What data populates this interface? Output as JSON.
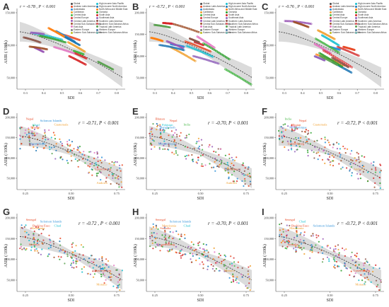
{
  "chart_data": [
    {
      "panel": "A",
      "type": "scatter",
      "stat": "r = -0.78 ,  P < 0.001",
      "ylabel": "ASIR (/100k)",
      "xlabel": "SDI",
      "yticks": [
        "50,000",
        "100,000",
        "150,000"
      ],
      "xticks": [
        "0.3",
        "0.4",
        "0.5",
        "0.6",
        "0.7",
        "0.8"
      ],
      "legend": [
        {
          "name": "Global",
          "color": "#444444"
        },
        {
          "name": "Andean Latin America",
          "color": "#e84a27"
        },
        {
          "name": "Australasia",
          "color": "#2c8fd8"
        },
        {
          "name": "Caribbean",
          "color": "#f0a030"
        },
        {
          "name": "Central Asia",
          "color": "#48b848"
        },
        {
          "name": "Central Europe",
          "color": "#d63b3b"
        },
        {
          "name": "Central Latin America",
          "color": "#9b59b6"
        },
        {
          "name": "Central Sub-Saharan Africa",
          "color": "#a0522d"
        },
        {
          "name": "East Asia",
          "color": "#e377c2"
        },
        {
          "name": "Eastern Europe",
          "color": "#7f7f7f"
        },
        {
          "name": "Eastern Sub-Saharan Africa",
          "color": "#bcbd22"
        },
        {
          "name": "High-income Asia Pacific",
          "color": "#17becf"
        },
        {
          "name": "High-income North America",
          "color": "#1f77b4"
        },
        {
          "name": "North Africa and Middle East",
          "color": "#ff7f0e"
        },
        {
          "name": "Oceania",
          "color": "#2ca02c"
        },
        {
          "name": "South Asia",
          "color": "#d62728"
        },
        {
          "name": "Southeast Asia",
          "color": "#9467bd"
        },
        {
          "name": "Southern Latin America",
          "color": "#8c564b"
        },
        {
          "name": "Southern Sub-Saharan Africa",
          "color": "#e15759"
        },
        {
          "name": "Tropical Latin America",
          "color": "#59a14f"
        },
        {
          "name": "Western Europe",
          "color": "#4e79a7"
        },
        {
          "name": "Western Sub-Saharan Africa",
          "color": "#76b7b2"
        }
      ]
    },
    {
      "panel": "B",
      "type": "scatter",
      "stat": "r = -0.72 ,  P < 0.001",
      "ylabel": "ASIR (/100k)",
      "xlabel": "SDI",
      "yticks": [
        "50,000",
        "100,000",
        "150,000",
        "200,000"
      ],
      "xticks": [
        "0.3",
        "0.4",
        "0.5",
        "0.6",
        "0.7",
        "0.8"
      ],
      "legend": [
        {
          "name": "Global",
          "color": "#444444"
        },
        {
          "name": "Andean Latin America",
          "color": "#e84a27"
        },
        {
          "name": "Australasia",
          "color": "#2c8fd8"
        },
        {
          "name": "Caribbean",
          "color": "#f0a030"
        },
        {
          "name": "Central Asia",
          "color": "#48b848"
        },
        {
          "name": "Central Europe",
          "color": "#d63b3b"
        },
        {
          "name": "Central Latin America",
          "color": "#9b59b6"
        },
        {
          "name": "Central Sub-Saharan Africa",
          "color": "#a0522d"
        },
        {
          "name": "East Asia",
          "color": "#e377c2"
        },
        {
          "name": "Eastern Europe",
          "color": "#7f7f7f"
        },
        {
          "name": "Eastern Sub-Saharan Africa",
          "color": "#bcbd22"
        },
        {
          "name": "High-income Asia Pacific",
          "color": "#17becf"
        },
        {
          "name": "High-income North America",
          "color": "#1f77b4"
        },
        {
          "name": "North Africa and Middle East",
          "color": "#ff7f0e"
        },
        {
          "name": "Oceania",
          "color": "#2ca02c"
        },
        {
          "name": "South Asia",
          "color": "#d62728"
        },
        {
          "name": "Southeast Asia",
          "color": "#9467bd"
        },
        {
          "name": "Southern Latin America",
          "color": "#8c564b"
        },
        {
          "name": "Southern Sub-Saharan Africa",
          "color": "#e15759"
        },
        {
          "name": "Tropical Latin America",
          "color": "#59a14f"
        },
        {
          "name": "Western Europe",
          "color": "#4e79a7"
        },
        {
          "name": "Western Sub-Saharan Africa",
          "color": "#76b7b2"
        }
      ]
    },
    {
      "panel": "C",
      "type": "scatter",
      "stat": "r = -0.76 ,  P < 0.001",
      "ylabel": "ASIR (/100k)",
      "xlabel": "SDI",
      "yticks": [
        "50,000",
        "100,000",
        "150,000"
      ],
      "xticks": [
        "0.3",
        "0.4",
        "0.5",
        "0.6",
        "0.7",
        "0.8"
      ],
      "legend": [
        {
          "name": "Global",
          "color": "#444444"
        },
        {
          "name": "Andean Latin America",
          "color": "#e84a27"
        },
        {
          "name": "Australasia",
          "color": "#2c8fd8"
        },
        {
          "name": "Caribbean",
          "color": "#f0a030"
        },
        {
          "name": "Central Asia",
          "color": "#48b848"
        },
        {
          "name": "Central Europe",
          "color": "#d63b3b"
        },
        {
          "name": "Central Latin America",
          "color": "#9b59b6"
        },
        {
          "name": "Central Sub-Saharan Africa",
          "color": "#a0522d"
        },
        {
          "name": "East Asia",
          "color": "#e377c2"
        },
        {
          "name": "Eastern Europe",
          "color": "#7f7f7f"
        },
        {
          "name": "Eastern Sub-Saharan Africa",
          "color": "#bcbd22"
        },
        {
          "name": "High-income Asia Pacific",
          "color": "#17becf"
        },
        {
          "name": "High-income North America",
          "color": "#1f77b4"
        },
        {
          "name": "North Africa and Middle East",
          "color": "#ff7f0e"
        },
        {
          "name": "Oceania",
          "color": "#2ca02c"
        },
        {
          "name": "South Asia",
          "color": "#d62728"
        },
        {
          "name": "Southeast Asia",
          "color": "#9467bd"
        },
        {
          "name": "Southern Latin America",
          "color": "#8c564b"
        },
        {
          "name": "Southern Sub-Saharan Africa",
          "color": "#e15759"
        },
        {
          "name": "Tropical Latin America",
          "color": "#59a14f"
        },
        {
          "name": "Western Europe",
          "color": "#4e79a7"
        },
        {
          "name": "Western Sub-Saharan Africa",
          "color": "#76b7b2"
        }
      ]
    },
    {
      "panel": "D",
      "type": "scatter",
      "stat": "r = -0.71,  P < 0.001",
      "ylabel": "ASIR (/100k)",
      "xlabel": "SDI",
      "yticks": [
        "50,000",
        "100,000",
        "150,000",
        "200,000"
      ],
      "xticks": [
        "0.25",
        "0.50",
        "0.75"
      ],
      "annotations": [
        {
          "text": "Solomon Islands",
          "color": "#2c8fd8"
        },
        {
          "text": "Guatemala",
          "color": "#f0a030"
        },
        {
          "text": "Nepal",
          "color": "#e84a27"
        },
        {
          "text": "Chad",
          "color": "#17becf"
        },
        {
          "text": "Bhutan",
          "color": "#e84a27"
        },
        {
          "text": "Mozambique",
          "color": "#2c8fd8"
        },
        {
          "text": "Luxembourg",
          "color": "#e84a27"
        },
        {
          "text": "Andorra",
          "color": "#f0a030"
        }
      ]
    },
    {
      "panel": "E",
      "type": "scatter",
      "stat": "r = -0.70,  P < 0.001",
      "ylabel": "ASIR (/100k)",
      "xlabel": "SDI",
      "yticks": [
        "50,000",
        "100,000",
        "150,000",
        "200,000"
      ],
      "xticks": [
        "0.25",
        "0.50",
        "0.75"
      ],
      "annotations": [
        {
          "text": "Nepal",
          "color": "#e84a27"
        },
        {
          "text": "India",
          "color": "#48b848"
        },
        {
          "text": "Bhutan",
          "color": "#e84a27"
        },
        {
          "text": "Pakistan",
          "color": "#17becf"
        },
        {
          "text": "Bangladesh",
          "color": "#2c8fd8"
        },
        {
          "text": "Mozambique",
          "color": "#2c8fd8"
        },
        {
          "text": "Luxembourg",
          "color": "#e84a27"
        },
        {
          "text": "Andorra",
          "color": "#f0a030"
        }
      ]
    },
    {
      "panel": "F",
      "type": "scatter",
      "stat": "r = -0.72,  P < 0.001",
      "ylabel": "ASIR (/100k)",
      "xlabel": "SDI",
      "yticks": [
        "50,000",
        "100,000",
        "150,000",
        "200,000"
      ],
      "xticks": [
        "0.25",
        "0.50",
        "0.75"
      ],
      "annotations": [
        {
          "text": "Nepal",
          "color": "#e84a27"
        },
        {
          "text": "Guatemala",
          "color": "#f0a030"
        },
        {
          "text": "India",
          "color": "#48b848"
        },
        {
          "text": "Bhutan",
          "color": "#e84a27"
        },
        {
          "text": "Mozambique",
          "color": "#2c8fd8"
        },
        {
          "text": "Luxembourg",
          "color": "#e84a27"
        },
        {
          "text": "Andorra",
          "color": "#f0a030"
        }
      ]
    },
    {
      "panel": "G",
      "type": "scatter",
      "stat": "r = -0.72 ,  P < 0.001",
      "ylabel": "ASIR (/100k)",
      "xlabel": "SDI",
      "yticks": [
        "50,000",
        "100,000",
        "150,000",
        "200,000"
      ],
      "xticks": [
        "0.25",
        "0.50",
        "0.75"
      ],
      "annotations": [
        {
          "text": "Solomon Islands",
          "color": "#2c8fd8"
        },
        {
          "text": "Chad",
          "color": "#17becf"
        },
        {
          "text": "Senegal",
          "color": "#e84a27"
        },
        {
          "text": "Burkina Faso",
          "color": "#e84a27"
        },
        {
          "text": "Mauritania",
          "color": "#f0a030"
        },
        {
          "text": "Somalia",
          "color": "#e84a27"
        },
        {
          "text": "Luxembourg",
          "color": "#e84a27"
        },
        {
          "text": "Monaco",
          "color": "#f0a030"
        }
      ]
    },
    {
      "panel": "H",
      "type": "scatter",
      "stat": "r = -0.70,  P < 0.001",
      "ylabel": "ASIR (/100k)",
      "xlabel": "SDI",
      "yticks": [
        "50,000",
        "100,000",
        "150,000",
        "200,000"
      ],
      "xticks": [
        "0.25",
        "0.50",
        "0.75"
      ],
      "annotations": [
        {
          "text": "Solomon Islands",
          "color": "#2c8fd8"
        },
        {
          "text": "Chad",
          "color": "#17becf"
        },
        {
          "text": "Senegal",
          "color": "#e84a27"
        },
        {
          "text": "Mauritania",
          "color": "#f0a030"
        },
        {
          "text": "Somalia",
          "color": "#e84a27"
        },
        {
          "text": "Luxembourg",
          "color": "#e84a27"
        },
        {
          "text": "Monaco",
          "color": "#f0a030"
        }
      ]
    },
    {
      "panel": "I",
      "type": "scatter",
      "stat": "r = -0.72,  P < 0.001",
      "ylabel": "ASIR (/100k)",
      "xlabel": "SDI",
      "yticks": [
        "50,000",
        "100,000",
        "150,000",
        "200,000"
      ],
      "xticks": [
        "0.25",
        "0.50",
        "0.75"
      ],
      "annotations": [
        {
          "text": "Chad",
          "color": "#17becf"
        },
        {
          "text": "Solomon Islands",
          "color": "#2c8fd8"
        },
        {
          "text": "Senegal",
          "color": "#e84a27"
        },
        {
          "text": "Burkina Faso",
          "color": "#e84a27"
        },
        {
          "text": "Mauritania",
          "color": "#f0a030"
        },
        {
          "text": "Somalia",
          "color": "#e84a27"
        },
        {
          "text": "Luxembourg",
          "color": "#e84a27"
        },
        {
          "text": "Monaco",
          "color": "#f0a030"
        }
      ]
    }
  ]
}
